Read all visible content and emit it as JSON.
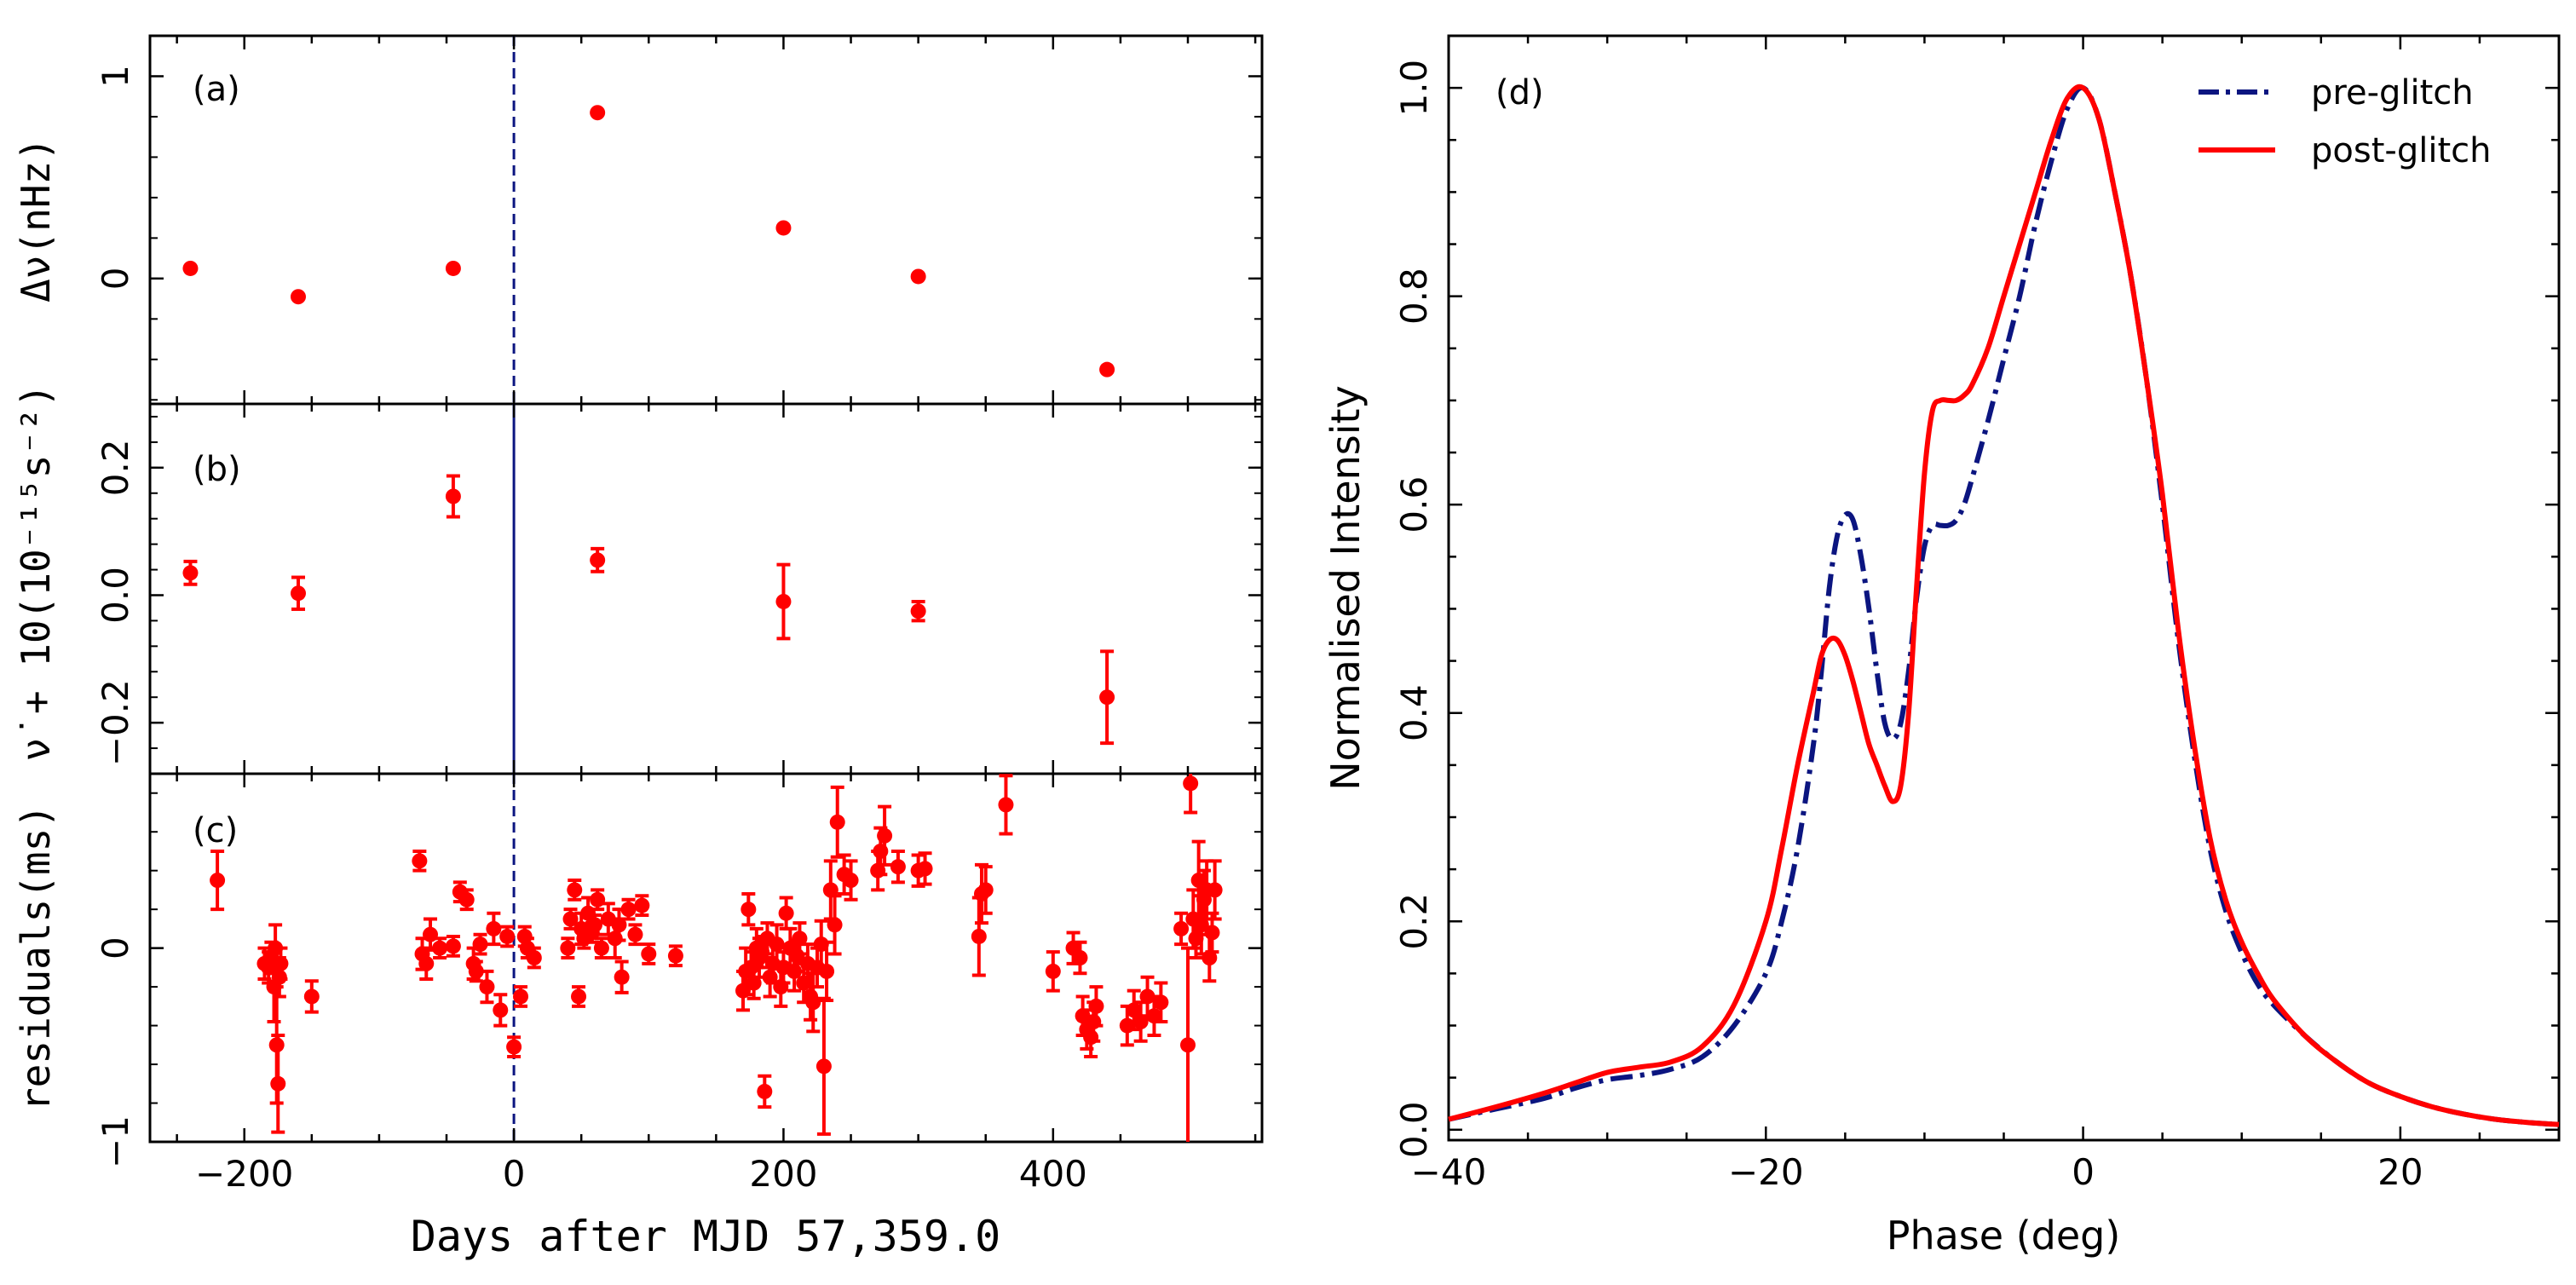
{
  "colors": {
    "red": "#ff0000",
    "navy": "#0b1580",
    "black": "#000000"
  },
  "chart_data": [
    {
      "type": "scatter",
      "panel_label": "(a)",
      "ylabel": "Δν(nHz)",
      "xlim": [
        -270,
        555
      ],
      "ylim": [
        -0.62,
        1.2
      ],
      "yticks": [
        0,
        1
      ],
      "ytick_labels": [
        "0",
        "1"
      ],
      "glitch_x": 0,
      "x": [
        -240,
        -160,
        -45,
        62,
        200,
        300,
        440
      ],
      "y": [
        0.05,
        -0.09,
        0.05,
        0.82,
        0.25,
        0.01,
        -0.45
      ]
    },
    {
      "type": "scatter",
      "panel_label": "(b)",
      "ylabel": "ν̇ + 10(10⁻¹⁵s⁻²)",
      "xlim": [
        -270,
        555
      ],
      "ylim": [
        -0.28,
        0.3
      ],
      "yticks": [
        -0.2,
        0.0,
        0.2
      ],
      "ytick_labels": [
        "−0.2",
        "0.0",
        "0.2"
      ],
      "glitch_x": 0,
      "x": [
        -240,
        -160,
        -45,
        62,
        200,
        300,
        440
      ],
      "y": [
        0.035,
        0.003,
        0.155,
        0.055,
        -0.01,
        -0.025,
        -0.16
      ],
      "err": [
        0.018,
        0.025,
        0.032,
        0.018,
        0.058,
        0.015,
        0.072
      ]
    },
    {
      "type": "scatter",
      "panel_label": "(c)",
      "ylabel": "residuals(ms)",
      "xlabel": "Days after MJD 57,359.0",
      "xlim": [
        -270,
        555
      ],
      "ylim": [
        -1.0,
        0.9
      ],
      "yticks": [
        -1,
        0
      ],
      "ytick_labels": [
        "−1",
        "0"
      ],
      "xticks": [
        -200,
        0,
        200,
        400
      ],
      "xtick_labels": [
        "−200",
        "0",
        "200",
        "400"
      ],
      "glitch_x": 0,
      "x": [
        -220,
        -185,
        -182,
        -180,
        -178,
        -177,
        -176,
        -175,
        -174,
        -173,
        -150,
        -70,
        -68,
        -65,
        -62,
        -55,
        -45,
        -40,
        -35,
        -30,
        -28,
        -25,
        -20,
        -15,
        -10,
        -5,
        0,
        5,
        8,
        10,
        15,
        40,
        42,
        45,
        48,
        50,
        52,
        55,
        58,
        60,
        62,
        65,
        70,
        75,
        78,
        80,
        85,
        90,
        95,
        100,
        120,
        170,
        172,
        174,
        176,
        178,
        180,
        182,
        184,
        186,
        188,
        190,
        192,
        195,
        198,
        200,
        202,
        205,
        208,
        210,
        212,
        215,
        218,
        220,
        222,
        225,
        228,
        230,
        232,
        235,
        238,
        240,
        245,
        250,
        270,
        272,
        275,
        285,
        300,
        305,
        345,
        347,
        350,
        365,
        400,
        415,
        420,
        422,
        425,
        428,
        430,
        432,
        455,
        460,
        465,
        470,
        475,
        480,
        495,
        500,
        502,
        504,
        506,
        508,
        510,
        512,
        514,
        516,
        518,
        520
      ],
      "y": [
        0.35,
        -0.08,
        -0.1,
        -0.05,
        -0.2,
        0.0,
        -0.5,
        -0.7,
        -0.15,
        -0.08,
        -0.25,
        0.45,
        -0.03,
        -0.08,
        0.07,
        0.0,
        0.01,
        0.29,
        0.25,
        -0.08,
        -0.12,
        0.02,
        -0.2,
        0.1,
        -0.32,
        0.06,
        -0.51,
        -0.25,
        0.06,
        0.0,
        -0.05,
        0.0,
        0.15,
        0.3,
        -0.25,
        0.1,
        0.05,
        0.18,
        0.08,
        0.12,
        0.25,
        0.0,
        0.15,
        0.05,
        0.12,
        -0.15,
        0.2,
        0.07,
        0.22,
        -0.03,
        -0.04,
        -0.22,
        -0.12,
        0.2,
        -0.1,
        -0.18,
        0.0,
        -0.05,
        -0.02,
        -0.74,
        0.05,
        -0.15,
        -0.08,
        0.02,
        -0.2,
        -0.1,
        0.18,
        0.0,
        -0.12,
        -0.04,
        0.05,
        -0.18,
        -0.08,
        -0.25,
        -0.28,
        -0.1,
        0.02,
        -0.61,
        -0.12,
        0.3,
        0.12,
        0.65,
        0.38,
        0.35,
        0.4,
        0.5,
        0.58,
        0.42,
        0.4,
        0.41,
        0.06,
        0.28,
        0.3,
        0.74,
        -0.12,
        0.0,
        -0.05,
        -0.35,
        -0.42,
        -0.46,
        -0.38,
        -0.3,
        -0.4,
        -0.32,
        -0.38,
        -0.25,
        -0.35,
        -0.28,
        0.1,
        -0.5,
        0.85,
        0.15,
        0.05,
        0.35,
        0.12,
        0.25,
        0.3,
        -0.05,
        0.08,
        0.3
      ],
      "err": [
        0.15,
        0.08,
        0.08,
        0.08,
        0.18,
        0.12,
        0.3,
        0.25,
        0.1,
        0.08,
        0.08,
        0.05,
        0.08,
        0.08,
        0.08,
        0.05,
        0.05,
        0.05,
        0.05,
        0.08,
        0.05,
        0.05,
        0.08,
        0.08,
        0.08,
        0.05,
        0.05,
        0.05,
        0.05,
        0.05,
        0.05,
        0.05,
        0.05,
        0.05,
        0.05,
        0.08,
        0.05,
        0.08,
        0.05,
        0.05,
        0.05,
        0.05,
        0.08,
        0.1,
        0.08,
        0.08,
        0.05,
        0.05,
        0.05,
        0.05,
        0.05,
        0.1,
        0.12,
        0.08,
        0.08,
        0.08,
        0.1,
        0.1,
        0.08,
        0.08,
        0.08,
        0.1,
        0.1,
        0.1,
        0.1,
        0.08,
        0.08,
        0.1,
        0.1,
        0.08,
        0.08,
        0.1,
        0.1,
        0.12,
        0.15,
        0.1,
        0.12,
        0.35,
        0.15,
        0.15,
        0.15,
        0.18,
        0.1,
        0.1,
        0.1,
        0.12,
        0.15,
        0.08,
        0.08,
        0.08,
        0.2,
        0.15,
        0.12,
        0.15,
        0.1,
        0.08,
        0.08,
        0.1,
        0.1,
        0.1,
        0.1,
        0.1,
        0.1,
        0.1,
        0.1,
        0.1,
        0.1,
        0.1,
        0.08,
        0.5,
        0.15,
        0.15,
        0.1,
        0.2,
        0.15,
        0.15,
        0.15,
        0.12,
        0.1,
        0.15
      ]
    },
    {
      "type": "line",
      "panel_label": "(d)",
      "xlabel": "Phase (deg)",
      "ylabel": "Normalised Intensity",
      "xlim": [
        -40,
        30
      ],
      "ylim": [
        -0.01,
        1.05
      ],
      "xticks": [
        -40,
        -20,
        0,
        20
      ],
      "xtick_labels": [
        "−40",
        "−20",
        "0",
        "20"
      ],
      "yticks": [
        0.0,
        0.2,
        0.4,
        0.6,
        0.8,
        1.0
      ],
      "ytick_labels": [
        "0.0",
        "0.2",
        "0.4",
        "0.6",
        "0.8",
        "1.0"
      ],
      "legend_position": "top-right",
      "series": [
        {
          "name": "pre-glitch",
          "style": "dashdot",
          "color": "#0b1580",
          "x": [
            -40,
            -37,
            -34,
            -32,
            -30,
            -28,
            -26,
            -24,
            -22,
            -20,
            -19,
            -18,
            -17,
            -16.5,
            -16,
            -15.5,
            -15,
            -14.5,
            -14,
            -13.5,
            -13,
            -12.5,
            -12,
            -11.5,
            -11,
            -10.5,
            -10,
            -9.5,
            -9,
            -8.5,
            -8,
            -7.5,
            -7,
            -6,
            -5,
            -4,
            -3,
            -2,
            -1,
            0,
            1,
            2,
            3,
            4,
            5,
            6,
            7,
            8,
            9,
            10,
            11,
            12,
            14,
            16,
            18,
            20,
            22,
            24,
            26,
            28,
            30
          ],
          "y": [
            0.01,
            0.02,
            0.03,
            0.04,
            0.048,
            0.052,
            0.058,
            0.07,
            0.1,
            0.15,
            0.2,
            0.27,
            0.37,
            0.44,
            0.52,
            0.57,
            0.59,
            0.585,
            0.55,
            0.5,
            0.44,
            0.39,
            0.375,
            0.39,
            0.44,
            0.51,
            0.56,
            0.58,
            0.58,
            0.58,
            0.585,
            0.6,
            0.625,
            0.68,
            0.74,
            0.8,
            0.87,
            0.93,
            0.98,
            1.0,
            0.97,
            0.9,
            0.82,
            0.72,
            0.6,
            0.47,
            0.36,
            0.27,
            0.21,
            0.17,
            0.14,
            0.12,
            0.09,
            0.065,
            0.045,
            0.032,
            0.022,
            0.015,
            0.01,
            0.007,
            0.005
          ]
        },
        {
          "name": "post-glitch",
          "style": "solid",
          "color": "#ff0000",
          "x": [
            -40,
            -37,
            -34,
            -32,
            -30,
            -28,
            -26,
            -24,
            -22,
            -20,
            -19,
            -18,
            -17,
            -16.5,
            -16,
            -15.5,
            -15,
            -14.5,
            -14,
            -13.5,
            -13,
            -12.5,
            -12,
            -11.5,
            -11,
            -10.5,
            -10,
            -9.5,
            -9,
            -8.5,
            -8,
            -7.5,
            -7,
            -6,
            -5,
            -4,
            -3,
            -2,
            -1,
            0,
            1,
            2,
            3,
            4,
            5,
            6,
            7,
            8,
            9,
            10,
            11,
            12,
            14,
            16,
            18,
            20,
            22,
            24,
            26,
            28,
            30
          ],
          "y": [
            0.01,
            0.022,
            0.035,
            0.045,
            0.055,
            0.06,
            0.065,
            0.08,
            0.12,
            0.2,
            0.27,
            0.35,
            0.42,
            0.455,
            0.47,
            0.47,
            0.455,
            0.43,
            0.4,
            0.37,
            0.35,
            0.33,
            0.315,
            0.33,
            0.4,
            0.52,
            0.63,
            0.69,
            0.7,
            0.7,
            0.7,
            0.705,
            0.715,
            0.75,
            0.8,
            0.85,
            0.9,
            0.95,
            0.99,
            1.0,
            0.97,
            0.9,
            0.82,
            0.72,
            0.61,
            0.48,
            0.37,
            0.28,
            0.22,
            0.18,
            0.15,
            0.125,
            0.09,
            0.065,
            0.045,
            0.032,
            0.022,
            0.015,
            0.01,
            0.007,
            0.005
          ]
        }
      ]
    }
  ]
}
